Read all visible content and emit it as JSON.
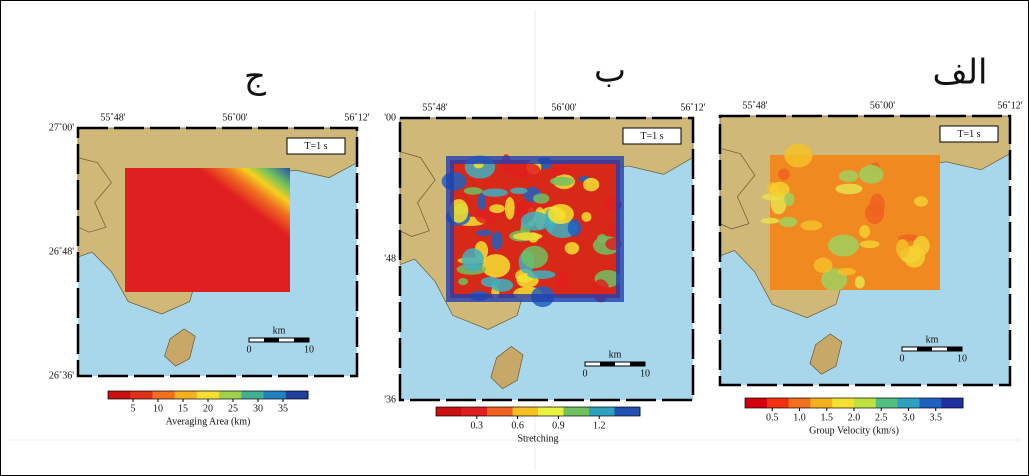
{
  "panels": [
    {
      "label": "ج",
      "lon_labels": [
        "55˚48'",
        "56˚00'",
        "56˚12'"
      ],
      "lat_labels": [
        "27˚00'",
        "26˚48'",
        "26˚36'"
      ],
      "period": "T=1 s",
      "scale": {
        "unit": "km",
        "start": "0",
        "end": "10"
      },
      "colorbar": {
        "ticks": [
          "5",
          "10",
          "15",
          "20",
          "25",
          "30",
          "35"
        ],
        "title": "Averaging Area (km)"
      }
    },
    {
      "label": "ب",
      "lon_labels": [
        "55˚48'",
        "56˚00'",
        "56˚12'"
      ],
      "lat_labels": [
        "'00",
        "'48",
        "'36"
      ],
      "period": "T=1 s",
      "scale": {
        "unit": "km",
        "start": "0",
        "end": "10"
      },
      "colorbar": {
        "ticks": [
          "0.3",
          "0.6",
          "0.9",
          "1.2"
        ],
        "title": "Stretching"
      }
    },
    {
      "label": "الف",
      "lon_labels": [
        "55˚48'",
        "56˚00'",
        "56˚12'"
      ],
      "lat_labels": [],
      "period": "T=1 s",
      "scale": {
        "unit": "km",
        "start": "0",
        "end": "10"
      },
      "colorbar": {
        "ticks": [
          "0.5",
          "1.0",
          "1.5",
          "2.0",
          "2.5",
          "3.0",
          "3.5"
        ],
        "title": "Group Velocity (km/s)"
      }
    }
  ]
}
